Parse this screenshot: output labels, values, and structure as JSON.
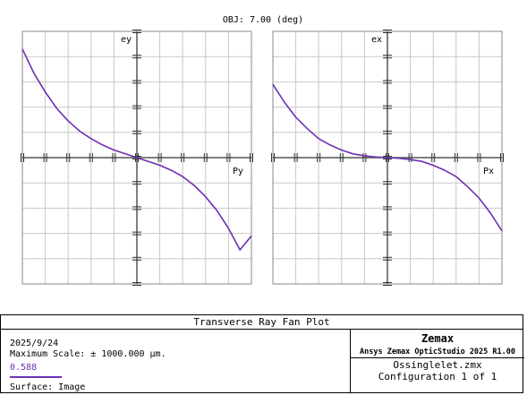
{
  "header": {
    "field_label": "OBJ: 7.00 (deg)"
  },
  "chart_data": [
    {
      "type": "line",
      "panel": "tangential",
      "axis_label_vertical": "ey",
      "axis_label_horizontal": "Py",
      "xlim": [
        -1,
        1
      ],
      "ylim": [
        -1,
        1
      ],
      "grid": true,
      "series": [
        {
          "color": "#6b2fb3",
          "x": [
            -1.0,
            -0.9,
            -0.8,
            -0.7,
            -0.6,
            -0.5,
            -0.4,
            -0.3,
            -0.2,
            -0.1,
            0.0,
            0.1,
            0.2,
            0.3,
            0.4,
            0.5,
            0.6,
            0.7,
            0.8,
            0.9,
            1.0
          ],
          "y": [
            0.86,
            0.67,
            0.52,
            0.39,
            0.29,
            0.21,
            0.15,
            0.1,
            0.06,
            0.03,
            0.0,
            -0.03,
            -0.06,
            -0.1,
            -0.15,
            -0.22,
            -0.31,
            -0.42,
            -0.56,
            -0.73,
            -0.62
          ]
        }
      ]
    },
    {
      "type": "line",
      "panel": "sagittal",
      "axis_label_vertical": "ex",
      "axis_label_horizontal": "Px",
      "xlim": [
        -1,
        1
      ],
      "ylim": [
        -1,
        1
      ],
      "grid": true,
      "series": [
        {
          "color": "#6b2fb3",
          "x": [
            -1.0,
            -0.9,
            -0.8,
            -0.7,
            -0.6,
            -0.5,
            -0.4,
            -0.3,
            -0.2,
            -0.1,
            0.0,
            0.1,
            0.2,
            0.3,
            0.4,
            0.5,
            0.6,
            0.7,
            0.8,
            0.9,
            1.0
          ],
          "y": [
            0.58,
            0.44,
            0.32,
            0.23,
            0.15,
            0.1,
            0.06,
            0.03,
            0.015,
            0.005,
            0.0,
            -0.005,
            -0.015,
            -0.03,
            -0.06,
            -0.1,
            -0.15,
            -0.23,
            -0.32,
            -0.44,
            -0.58
          ]
        }
      ]
    }
  ],
  "info": {
    "title": "Transverse Ray Fan Plot",
    "date": "2025/9/24",
    "max_scale": "Maximum Scale: ± 1000.000 µm.",
    "wavelength": "0.588",
    "wavelength_color": "#6b2fb3",
    "surface": "Surface: Image",
    "brand": "Zemax",
    "product": "Ansys Zemax OpticStudio 2025 R1.00",
    "file": "Ossinglelet.zmx",
    "configuration": "Configuration 1 of 1"
  }
}
